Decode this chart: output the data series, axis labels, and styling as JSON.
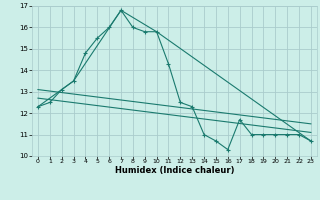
{
  "xlabel": "Humidex (Indice chaleur)",
  "bg_color": "#cceee8",
  "grid_color": "#aacccc",
  "line_color": "#1a7a6e",
  "xlim": [
    -0.5,
    23.5
  ],
  "ylim": [
    10,
    17
  ],
  "yticks": [
    10,
    11,
    12,
    13,
    14,
    15,
    16,
    17
  ],
  "xticks": [
    0,
    1,
    2,
    3,
    4,
    5,
    6,
    7,
    8,
    9,
    10,
    11,
    12,
    13,
    14,
    15,
    16,
    17,
    18,
    19,
    20,
    21,
    22,
    23
  ],
  "series1_x": [
    0,
    1,
    2,
    3,
    4,
    5,
    6,
    7,
    8,
    9,
    10,
    11,
    12,
    13,
    14,
    15,
    16,
    17,
    18,
    19,
    20,
    21,
    22,
    23
  ],
  "series1_y": [
    12.3,
    12.5,
    13.1,
    13.5,
    14.8,
    15.5,
    16.0,
    16.8,
    16.0,
    15.8,
    15.8,
    14.3,
    12.5,
    12.3,
    11.0,
    10.7,
    10.3,
    11.7,
    11.0,
    11.0,
    11.0,
    11.0,
    11.0,
    10.7
  ],
  "series2_x": [
    0,
    3,
    7,
    10,
    23
  ],
  "series2_y": [
    12.3,
    13.5,
    16.8,
    15.8,
    10.7
  ],
  "series3_x": [
    0,
    23
  ],
  "series3_y": [
    13.1,
    11.5
  ],
  "series4_x": [
    0,
    23
  ],
  "series4_y": [
    12.7,
    11.1
  ]
}
